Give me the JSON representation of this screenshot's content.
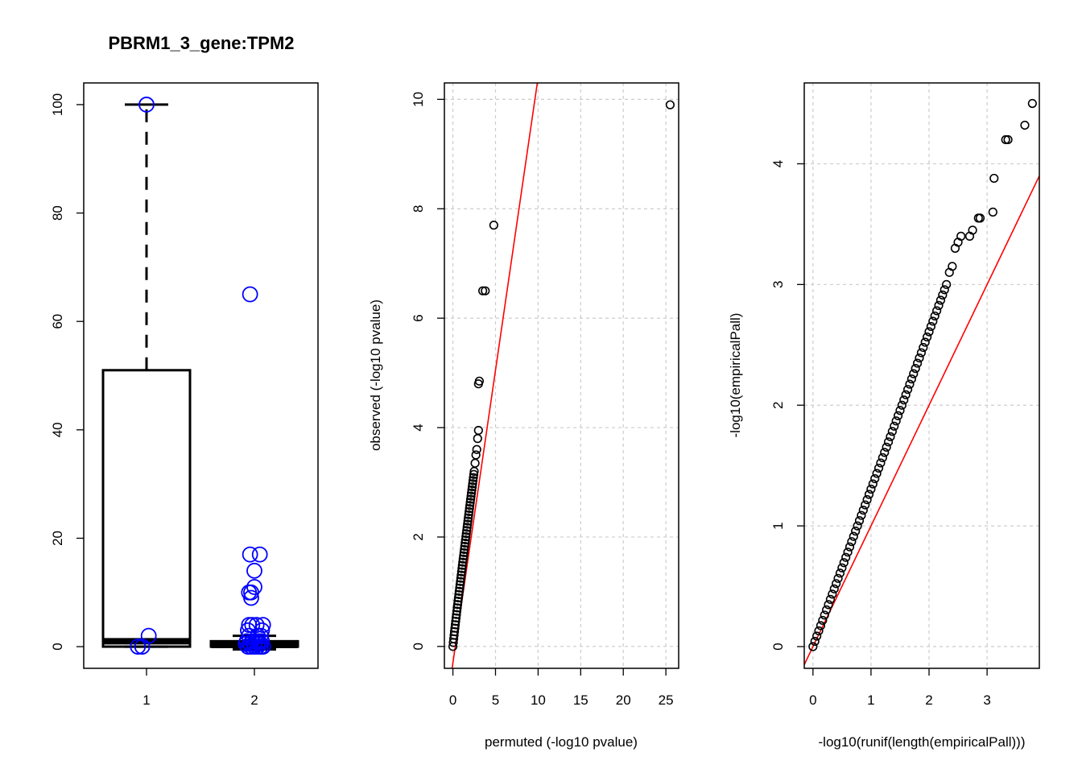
{
  "chart_data": [
    {
      "type": "box",
      "title": "PBRM1_3_gene:TPM2",
      "xlabel": "",
      "ylabel": "",
      "categories": [
        "1",
        "2"
      ],
      "ylim": [
        -4,
        104
      ],
      "yticks": [
        0,
        20,
        40,
        60,
        80,
        100
      ],
      "box_color": "#000000",
      "point_color": "#0000ff",
      "boxes": [
        {
          "category": "1",
          "whisker_low": 0,
          "q1": 0,
          "median": 1,
          "q3": 51,
          "whisker_high": 100
        },
        {
          "category": "2",
          "whisker_low": -0.5,
          "q1": 0,
          "median": 0.3,
          "q3": 1,
          "whisker_high": 2
        }
      ],
      "points": [
        {
          "category": "1",
          "jitter": 0.0,
          "y": 100
        },
        {
          "category": "1",
          "jitter": 0.02,
          "y": 2
        },
        {
          "category": "1",
          "jitter": -0.08,
          "y": 0
        },
        {
          "category": "1",
          "jitter": -0.04,
          "y": 0
        },
        {
          "category": "2",
          "jitter": -0.04,
          "y": 65
        },
        {
          "category": "2",
          "jitter": -0.04,
          "y": 17
        },
        {
          "category": "2",
          "jitter": 0.05,
          "y": 17
        },
        {
          "category": "2",
          "jitter": 0.0,
          "y": 14
        },
        {
          "category": "2",
          "jitter": 0.0,
          "y": 11
        },
        {
          "category": "2",
          "jitter": -0.05,
          "y": 10
        },
        {
          "category": "2",
          "jitter": -0.03,
          "y": 10
        },
        {
          "category": "2",
          "jitter": -0.03,
          "y": 9
        },
        {
          "category": "2",
          "jitter": -0.05,
          "y": 4
        },
        {
          "category": "2",
          "jitter": -0.02,
          "y": 4
        },
        {
          "category": "2",
          "jitter": 0.02,
          "y": 4
        },
        {
          "category": "2",
          "jitter": 0.08,
          "y": 4
        },
        {
          "category": "2",
          "jitter": -0.06,
          "y": 3
        },
        {
          "category": "2",
          "jitter": 0.07,
          "y": 3
        },
        {
          "category": "2",
          "jitter": -0.05,
          "y": 2
        },
        {
          "category": "2",
          "jitter": 0.03,
          "y": 2
        },
        {
          "category": "2",
          "jitter": 0.06,
          "y": 2
        },
        {
          "category": "2",
          "jitter": -0.07,
          "y": 1
        },
        {
          "category": "2",
          "jitter": -0.02,
          "y": 1
        },
        {
          "category": "2",
          "jitter": 0.01,
          "y": 1
        },
        {
          "category": "2",
          "jitter": 0.04,
          "y": 1
        },
        {
          "category": "2",
          "jitter": 0.07,
          "y": 1
        },
        {
          "category": "2",
          "jitter": -0.08,
          "y": 0.5
        },
        {
          "category": "2",
          "jitter": -0.04,
          "y": 0.5
        },
        {
          "category": "2",
          "jitter": 0.0,
          "y": 0.5
        },
        {
          "category": "2",
          "jitter": 0.05,
          "y": 0.5
        },
        {
          "category": "2",
          "jitter": -0.06,
          "y": 0
        },
        {
          "category": "2",
          "jitter": -0.03,
          "y": 0
        },
        {
          "category": "2",
          "jitter": 0.0,
          "y": 0
        },
        {
          "category": "2",
          "jitter": 0.03,
          "y": 0
        },
        {
          "category": "2",
          "jitter": 0.06,
          "y": 0
        },
        {
          "category": "2",
          "jitter": 0.08,
          "y": 0
        }
      ]
    },
    {
      "type": "scatter",
      "title": "",
      "xlabel": "permuted (-log10 pvalue)",
      "ylabel": "observed (-log10 pvalue)",
      "xlim": [
        -1.0,
        26.5
      ],
      "ylim": [
        -0.4,
        10.3
      ],
      "xticks": [
        0,
        5,
        10,
        15,
        20,
        25
      ],
      "yticks": [
        0,
        2,
        4,
        6,
        8,
        10
      ],
      "grid": true,
      "reference_line": {
        "slope": 1.07,
        "intercept": -0.3,
        "color": "#ff0000"
      },
      "dense_curve": {
        "x_range": [
          0,
          2.5
        ],
        "y_at_x_max": 3.2,
        "exponent": 0.95,
        "count": 55
      },
      "points": [
        [
          2.6,
          3.35
        ],
        [
          2.7,
          3.5
        ],
        [
          2.8,
          3.6
        ],
        [
          2.9,
          3.8
        ],
        [
          3.0,
          3.95
        ],
        [
          3.0,
          4.8
        ],
        [
          3.1,
          4.85
        ],
        [
          3.5,
          6.5
        ],
        [
          3.8,
          6.5
        ],
        [
          4.8,
          7.7
        ],
        [
          25.5,
          9.9
        ]
      ]
    },
    {
      "type": "scatter",
      "title": "",
      "xlabel": "-log10(runif(length(empiricalPall)))",
      "ylabel": "-log10(empiricalPall)",
      "xlim": [
        -0.15,
        3.9
      ],
      "ylim": [
        -0.18,
        4.67
      ],
      "xticks": [
        0,
        1,
        2,
        3
      ],
      "yticks": [
        0,
        1,
        2,
        3,
        4
      ],
      "grid": true,
      "reference_line": {
        "slope": 1.0,
        "intercept": 0.0,
        "color": "#ff0000"
      },
      "dense_curve": {
        "x_range": [
          0,
          2.3
        ],
        "y_at_x_max": 3.0,
        "exponent": 1.0,
        "count": 70
      },
      "points": [
        [
          2.35,
          3.1
        ],
        [
          2.4,
          3.15
        ],
        [
          2.45,
          3.3
        ],
        [
          2.5,
          3.35
        ],
        [
          2.55,
          3.4
        ],
        [
          2.7,
          3.4
        ],
        [
          2.75,
          3.45
        ],
        [
          2.85,
          3.55
        ],
        [
          2.88,
          3.55
        ],
        [
          3.1,
          3.6
        ],
        [
          3.12,
          3.88
        ],
        [
          3.32,
          4.2
        ],
        [
          3.36,
          4.2
        ],
        [
          3.65,
          4.32
        ],
        [
          3.78,
          4.5
        ]
      ]
    }
  ]
}
